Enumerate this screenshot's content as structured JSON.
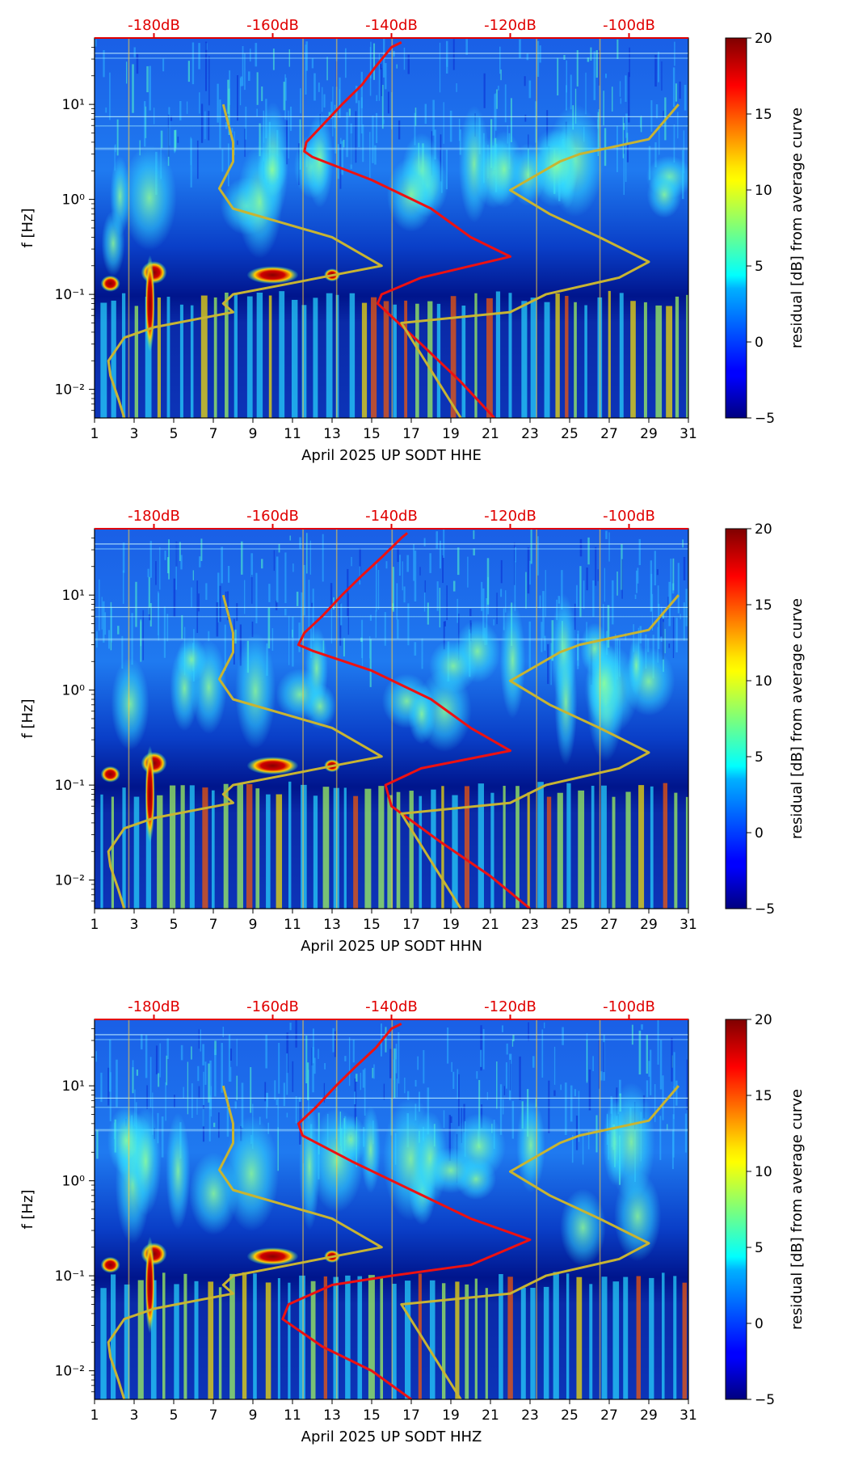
{
  "chart_data": [
    {
      "type": "heatmap",
      "title": "",
      "xlabel": "April 2025 UP SODT  HHE",
      "ylabel": "f [Hz]",
      "x_ticks": [
        1,
        3,
        5,
        7,
        9,
        11,
        13,
        15,
        17,
        19,
        21,
        23,
        25,
        27,
        29,
        31
      ],
      "x_tick_labels": [
        "1",
        "3",
        "5",
        "7",
        "9",
        "11",
        "13",
        "15",
        "17",
        "19",
        "21",
        "23",
        "25",
        "27",
        "29",
        "31"
      ],
      "xlim": [
        1,
        31
      ],
      "y_scale": "log",
      "ylim": [
        0.005,
        50
      ],
      "y_ticks": [
        0.01,
        0.1,
        1,
        10
      ],
      "y_tick_labels": [
        "10⁻²",
        "10⁻¹",
        "10⁰",
        "10¹"
      ],
      "top_axis_labels": [
        "-180dB",
        "-160dB",
        "-140dB",
        "-120dB",
        "-100dB"
      ],
      "top_axis_positions": [
        4,
        10,
        16,
        22,
        28
      ],
      "colorbar": {
        "label": "residual [dB] from average curve",
        "ticks": [
          -5,
          0,
          5,
          10,
          15,
          20
        ],
        "range": [
          -5,
          20
        ]
      },
      "series": [
        {
          "name": "average PSD",
          "color": "#ee1111",
          "points": [
            [
              21.2,
              0.005
            ],
            [
              19.5,
              0.012
            ],
            [
              17.5,
              0.03
            ],
            [
              15.3,
              0.08
            ],
            [
              15.5,
              0.1
            ],
            [
              17.5,
              0.15
            ],
            [
              22,
              0.25
            ],
            [
              20,
              0.4
            ],
            [
              18,
              0.8
            ],
            [
              15,
              1.6
            ],
            [
              12,
              2.8
            ],
            [
              11.6,
              3.2
            ],
            [
              11.7,
              4
            ],
            [
              12.5,
              6
            ],
            [
              13.5,
              10
            ],
            [
              14.5,
              16
            ],
            [
              15.2,
              25
            ],
            [
              16,
              40
            ],
            [
              16.5,
              45
            ]
          ]
        },
        {
          "name": "NLNM / NHNM",
          "color": "#c8b432",
          "points": [
            [
              2.5,
              0.005
            ],
            [
              2.2,
              0.008
            ],
            [
              1.8,
              0.014
            ],
            [
              1.7,
              0.02
            ],
            [
              2.5,
              0.035
            ],
            [
              4,
              0.045
            ],
            [
              8,
              0.065
            ],
            [
              7.5,
              0.08
            ],
            [
              8,
              0.1
            ],
            [
              10,
              0.12
            ],
            [
              15.5,
              0.2
            ],
            [
              13,
              0.4
            ],
            [
              8,
              0.8
            ],
            [
              7.3,
              1.3
            ],
            [
              8,
              2.5
            ],
            [
              8,
              4
            ],
            [
              7.5,
              10
            ]
          ]
        },
        {
          "name": "NLNM / NHNM",
          "color": "#c8b432",
          "points": [
            [
              19.5,
              0.005
            ],
            [
              16.5,
              0.05
            ],
            [
              22,
              0.065
            ],
            [
              23.8,
              0.1
            ],
            [
              27.5,
              0.15
            ],
            [
              29,
              0.22
            ],
            [
              26.5,
              0.4
            ],
            [
              24,
              0.7
            ],
            [
              22,
              1.25
            ],
            [
              24.5,
              2.5
            ],
            [
              25.5,
              3
            ],
            [
              29,
              4.3
            ],
            [
              30.5,
              10
            ]
          ]
        }
      ]
    },
    {
      "type": "heatmap",
      "title": "",
      "xlabel": "April 2025 UP SODT  HHN",
      "ylabel": "f [Hz]",
      "x_ticks": [
        1,
        3,
        5,
        7,
        9,
        11,
        13,
        15,
        17,
        19,
        21,
        23,
        25,
        27,
        29,
        31
      ],
      "x_tick_labels": [
        "1",
        "3",
        "5",
        "7",
        "9",
        "11",
        "13",
        "15",
        "17",
        "19",
        "21",
        "23",
        "25",
        "27",
        "29",
        "31"
      ],
      "xlim": [
        1,
        31
      ],
      "y_scale": "log",
      "ylim": [
        0.005,
        50
      ],
      "y_ticks": [
        0.01,
        0.1,
        1,
        10
      ],
      "y_tick_labels": [
        "10⁻²",
        "10⁻¹",
        "10⁰",
        "10¹"
      ],
      "top_axis_labels": [
        "-180dB",
        "-160dB",
        "-140dB",
        "-120dB",
        "-100dB"
      ],
      "top_axis_positions": [
        4,
        10,
        16,
        22,
        28
      ],
      "colorbar": {
        "label": "residual [dB] from average curve",
        "ticks": [
          -5,
          0,
          5,
          10,
          15,
          20
        ],
        "range": [
          -5,
          20
        ]
      },
      "series": [
        {
          "name": "average PSD",
          "color": "#ee1111",
          "points": [
            [
              23,
              0.005
            ],
            [
              21,
              0.011
            ],
            [
              18.5,
              0.025
            ],
            [
              16,
              0.06
            ],
            [
              15.7,
              0.1
            ],
            [
              17.5,
              0.15
            ],
            [
              22,
              0.23
            ],
            [
              20,
              0.4
            ],
            [
              18,
              0.8
            ],
            [
              15,
              1.6
            ],
            [
              12,
              2.6
            ],
            [
              11.3,
              3
            ],
            [
              11.6,
              4
            ],
            [
              12.5,
              6
            ],
            [
              13.5,
              10
            ],
            [
              14.5,
              16
            ],
            [
              15.5,
              25
            ],
            [
              16.5,
              40
            ],
            [
              16.8,
              45
            ]
          ]
        },
        {
          "name": "NLNM / NHNM",
          "color": "#c8b432",
          "points": [
            [
              2.5,
              0.005
            ],
            [
              2.2,
              0.008
            ],
            [
              1.8,
              0.014
            ],
            [
              1.7,
              0.02
            ],
            [
              2.5,
              0.035
            ],
            [
              4,
              0.045
            ],
            [
              8,
              0.065
            ],
            [
              7.5,
              0.08
            ],
            [
              8,
              0.1
            ],
            [
              10,
              0.12
            ],
            [
              15.5,
              0.2
            ],
            [
              13,
              0.4
            ],
            [
              8,
              0.8
            ],
            [
              7.3,
              1.3
            ],
            [
              8,
              2.5
            ],
            [
              8,
              4
            ],
            [
              7.5,
              10
            ]
          ]
        },
        {
          "name": "NLNM / NHNM",
          "color": "#c8b432",
          "points": [
            [
              19.5,
              0.005
            ],
            [
              16.5,
              0.05
            ],
            [
              22,
              0.065
            ],
            [
              23.8,
              0.1
            ],
            [
              27.5,
              0.15
            ],
            [
              29,
              0.22
            ],
            [
              26.5,
              0.4
            ],
            [
              24,
              0.7
            ],
            [
              22,
              1.25
            ],
            [
              24.5,
              2.5
            ],
            [
              25.5,
              3
            ],
            [
              29,
              4.3
            ],
            [
              30.5,
              10
            ]
          ]
        }
      ]
    },
    {
      "type": "heatmap",
      "title": "",
      "xlabel": "April 2025 UP SODT  HHZ",
      "ylabel": "f [Hz]",
      "x_ticks": [
        1,
        3,
        5,
        7,
        9,
        11,
        13,
        15,
        17,
        19,
        21,
        23,
        25,
        27,
        29,
        31
      ],
      "x_tick_labels": [
        "1",
        "3",
        "5",
        "7",
        "9",
        "11",
        "13",
        "15",
        "17",
        "19",
        "21",
        "23",
        "25",
        "27",
        "29",
        "31"
      ],
      "xlim": [
        1,
        31
      ],
      "y_scale": "log",
      "ylim": [
        0.005,
        50
      ],
      "y_ticks": [
        0.01,
        0.1,
        1,
        10
      ],
      "y_tick_labels": [
        "10⁻²",
        "10⁻¹",
        "10⁰",
        "10¹"
      ],
      "top_axis_labels": [
        "-180dB",
        "-160dB",
        "-140dB",
        "-120dB",
        "-100dB"
      ],
      "top_axis_positions": [
        4,
        10,
        16,
        22,
        28
      ],
      "colorbar": {
        "label": "residual [dB] from average curve",
        "ticks": [
          -5,
          0,
          5,
          10,
          15,
          20
        ],
        "range": [
          -5,
          20
        ]
      },
      "series": [
        {
          "name": "average PSD",
          "color": "#ee1111",
          "points": [
            [
              17,
              0.005
            ],
            [
              15,
              0.01
            ],
            [
              12.5,
              0.018
            ],
            [
              10.5,
              0.035
            ],
            [
              10.8,
              0.05
            ],
            [
              13,
              0.08
            ],
            [
              16,
              0.1
            ],
            [
              20,
              0.13
            ],
            [
              23,
              0.24
            ],
            [
              20,
              0.4
            ],
            [
              17,
              0.8
            ],
            [
              14,
              1.6
            ],
            [
              11.5,
              3
            ],
            [
              11.3,
              4
            ],
            [
              12.2,
              6
            ],
            [
              13.2,
              10
            ],
            [
              14.2,
              16
            ],
            [
              15.2,
              25
            ],
            [
              16,
              40
            ],
            [
              16.5,
              45
            ]
          ]
        },
        {
          "name": "NLNM / NHNM",
          "color": "#c8b432",
          "points": [
            [
              2.5,
              0.005
            ],
            [
              2.2,
              0.008
            ],
            [
              1.8,
              0.014
            ],
            [
              1.7,
              0.02
            ],
            [
              2.5,
              0.035
            ],
            [
              4,
              0.045
            ],
            [
              8,
              0.065
            ],
            [
              7.5,
              0.08
            ],
            [
              8,
              0.1
            ],
            [
              10,
              0.12
            ],
            [
              15.5,
              0.2
            ],
            [
              13,
              0.4
            ],
            [
              8,
              0.8
            ],
            [
              7.3,
              1.3
            ],
            [
              8,
              2.5
            ],
            [
              8,
              4
            ],
            [
              7.5,
              10
            ]
          ]
        },
        {
          "name": "NLNM / NHNM",
          "color": "#c8b432",
          "points": [
            [
              19.5,
              0.005
            ],
            [
              16.5,
              0.05
            ],
            [
              22,
              0.065
            ],
            [
              23.8,
              0.1
            ],
            [
              27.5,
              0.15
            ],
            [
              29,
              0.22
            ],
            [
              26.5,
              0.4
            ],
            [
              24,
              0.7
            ],
            [
              22,
              1.25
            ],
            [
              24.5,
              2.5
            ],
            [
              25.5,
              3
            ],
            [
              29,
              4.3
            ],
            [
              30.5,
              10
            ]
          ]
        }
      ]
    }
  ]
}
